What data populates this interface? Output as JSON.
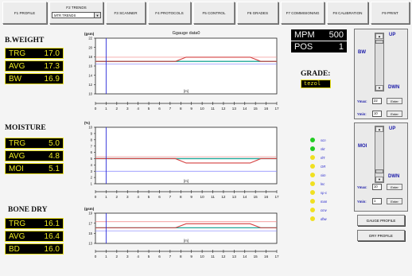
{
  "tabs": [
    {
      "label": "F1 PROFILE"
    },
    {
      "label": "F2 TRENDS",
      "select_value": "MTR TRENDS"
    },
    {
      "label": "F3 SCANNER"
    },
    {
      "label": "F4 PROTOCOLS"
    },
    {
      "label": "F5 CONTROL"
    },
    {
      "label": "F6 GRADES"
    },
    {
      "label": "F7 COMMISIONING"
    },
    {
      "label": "F8 CALIBRATION"
    },
    {
      "label": "F9 PRINT"
    }
  ],
  "sections": [
    {
      "heading": "B.WEIGHT",
      "rows": [
        {
          "k": "TRG",
          "v": "17.0"
        },
        {
          "k": "AVG",
          "v": "17.3"
        },
        {
          "k": "BW",
          "v": "16.9"
        }
      ]
    },
    {
      "heading": "MOISTURE",
      "rows": [
        {
          "k": "TRG",
          "v": "5.0"
        },
        {
          "k": "AVG",
          "v": "4.8"
        },
        {
          "k": "MOI",
          "v": "5.1"
        }
      ]
    },
    {
      "heading": "BONE DRY",
      "rows": [
        {
          "k": "TRG",
          "v": "16.1"
        },
        {
          "k": "AVG",
          "v": "16.4"
        },
        {
          "k": "BD",
          "v": "16.0"
        }
      ]
    }
  ],
  "status": {
    "mpm_label": "MPM",
    "mpm_value": "500",
    "pos_label": "POS",
    "pos_value": "1",
    "grade_label": "GRADE:",
    "grade_value": "tezol"
  },
  "legend": [
    {
      "label": "scn",
      "color": "#22cc22"
    },
    {
      "label": "skt",
      "color": "#22cc22"
    },
    {
      "label": "rlt't",
      "color": "#f0e020"
    },
    {
      "label": "OR",
      "color": "#f0e020"
    },
    {
      "label": "sim",
      "color": "#f0e020"
    },
    {
      "label": "lnc",
      "color": "#f0e020"
    },
    {
      "label": "sp-c",
      "color": "#f0e020"
    },
    {
      "label": "man",
      "color": "#f0e020"
    },
    {
      "label": "cmv",
      "color": "#f0e020"
    },
    {
      "label": "dbw",
      "color": "#f0e020"
    }
  ],
  "controls": [
    {
      "label": "BW",
      "up": "UP",
      "down": "DWN",
      "ymax_label": "Ymax:",
      "ymax_value": "22",
      "ymin_label": "Ymin:",
      "ymin_value": "10",
      "enter": "Enter"
    },
    {
      "label": "MOI",
      "up": "UP",
      "down": "DWN",
      "ymax_label": "Ymax:",
      "ymax_value": "10",
      "ymin_label": "Ymin:",
      "ymin_value": "1",
      "enter": "Enter"
    }
  ],
  "buttons": {
    "gauge_profile": "GAUGE PROFILE",
    "dry_profile": "DRY PROFILE"
  },
  "chart_data": [
    {
      "type": "line",
      "title": "Ggauge data0",
      "ylabel": "(gsm)",
      "xlabel": "[m]",
      "ylim": [
        10,
        22
      ],
      "yticks": [
        10,
        12,
        14,
        16,
        18,
        20,
        22
      ],
      "x_ticks": [
        0,
        1,
        2,
        3,
        4,
        5,
        6,
        7,
        8,
        9,
        10,
        11,
        12,
        13,
        14,
        15,
        16,
        17
      ],
      "cursor_x": 1,
      "target": 17.0,
      "band_high": 17.9,
      "band_low": 16.4,
      "x": [
        0,
        7.5,
        8.5,
        14.5,
        15.5,
        17
      ],
      "series": [
        {
          "values": [
            17.0,
            17.0,
            17.9,
            17.9,
            17.0,
            17.0
          ],
          "color": "#d44040"
        }
      ]
    },
    {
      "type": "line",
      "ylabel": "(%)",
      "xlabel": "[m]",
      "ylim": [
        1,
        10
      ],
      "yticks": [
        1,
        2,
        3,
        4,
        5,
        6,
        7,
        8,
        9,
        10
      ],
      "x_ticks": [
        0,
        1,
        2,
        3,
        4,
        5,
        6,
        7,
        8,
        9,
        10,
        11,
        12,
        13,
        14,
        15,
        16,
        17
      ],
      "cursor_x": 1,
      "target": 5.0,
      "band_high": 5.3,
      "band_low": 3.0,
      "x": [
        0,
        7.5,
        8.5,
        14.5,
        15.5,
        17
      ],
      "series": [
        {
          "values": [
            5.0,
            5.0,
            4.3,
            4.3,
            5.0,
            5.0
          ],
          "color": "#d44040"
        }
      ]
    },
    {
      "type": "line",
      "ylabel": "(gsm)",
      "xlabel": "[m]",
      "ylim": [
        13,
        19
      ],
      "yticks": [
        13,
        15,
        17,
        19
      ],
      "x_ticks": [
        0,
        1,
        2,
        3,
        4,
        5,
        6,
        7,
        8,
        9,
        10,
        11,
        12,
        13,
        14,
        15,
        16,
        17
      ],
      "cursor_x": 1,
      "target": 16.1,
      "band_high": 17.3,
      "band_low": 15.5,
      "x": [
        0,
        7.5,
        8.5,
        14.5,
        15.5,
        17
      ],
      "series": [
        {
          "values": [
            16.1,
            16.1,
            16.9,
            16.9,
            16.1,
            16.1
          ],
          "color": "#d44040"
        }
      ]
    }
  ]
}
